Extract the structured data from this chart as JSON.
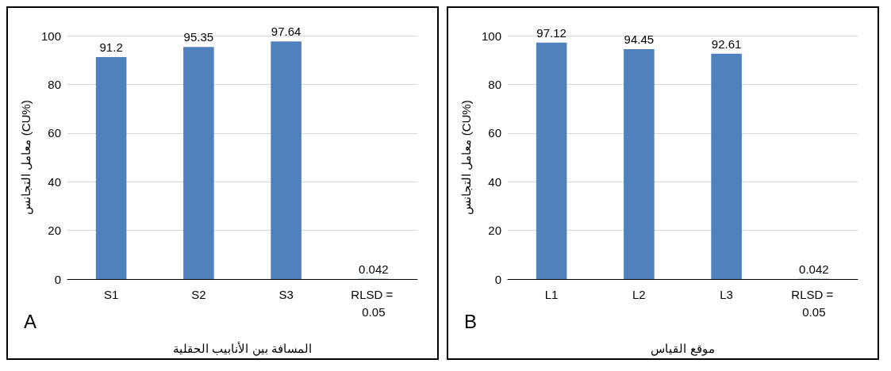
{
  "chart_data": [
    {
      "type": "bar",
      "categories": [
        "S1",
        "S2",
        "S3",
        "RLSD = 0.05"
      ],
      "values": [
        91.2,
        95.35,
        97.64,
        0.042
      ],
      "color": "#4f81bd",
      "data_labels": true,
      "ylim": [
        0,
        100
      ],
      "yticks": [
        0,
        20,
        40,
        60,
        80,
        100
      ],
      "ylabel": "معامل التجانس (CU%)",
      "xlabel": "المسافة بين الأنابيب الحقلية",
      "annotations": [
        "A"
      ],
      "grid": "y"
    },
    {
      "type": "bar",
      "categories": [
        "L1",
        "L2",
        "L3",
        "RLSD = 0.05"
      ],
      "values": [
        97.12,
        94.45,
        92.61,
        0.042
      ],
      "color": "#4f81bd",
      "data_labels": true,
      "ylim": [
        0,
        100
      ],
      "yticks": [
        0,
        20,
        40,
        60,
        80,
        100
      ],
      "ylabel": "معامل التجانس (CU%)",
      "xlabel": "موقع القياس",
      "annotations": [
        "B"
      ],
      "grid": "y"
    }
  ]
}
